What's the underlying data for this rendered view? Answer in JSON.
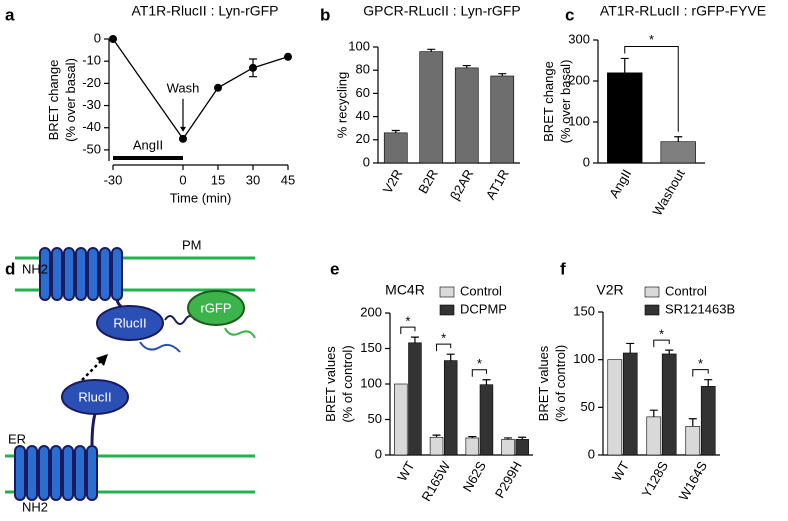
{
  "chart_data": [
    {
      "type": "line",
      "panel": "a",
      "title": "AT1R-RlucII : Lyn-rGFP",
      "xlabel": "Time (min)",
      "ylabel": [
        "BRET change",
        "(% over basal)"
      ],
      "x": [
        -30,
        0,
        15,
        30,
        45
      ],
      "values": [
        0,
        -45,
        -22,
        -13,
        -8
      ],
      "errors": [
        null,
        null,
        null,
        4,
        null
      ],
      "color": "#000000",
      "xlim": [
        -30,
        45
      ],
      "xticks": [
        -30,
        0,
        15,
        30,
        45
      ],
      "ylim": [
        -55,
        0
      ],
      "yticks": [
        0,
        -10,
        -20,
        -30,
        -40,
        -50
      ],
      "wash_label": "Wash",
      "treatment_label": "AngII",
      "treatment_x": [
        -30,
        0
      ]
    },
    {
      "type": "bar",
      "panel": "b",
      "title": "GPCR-RLucII : Lyn-rGFP",
      "ylabel": [
        "% recycling"
      ],
      "categories": [
        "V2R",
        "B2R",
        "β2AR",
        "AT1R"
      ],
      "values": [
        26,
        96,
        82,
        75
      ],
      "errors": [
        2,
        2,
        2,
        2
      ],
      "color": "#6e6e6e",
      "ylim": [
        0,
        100
      ],
      "yticks": [
        0,
        20,
        40,
        60,
        80,
        100
      ]
    },
    {
      "type": "bar",
      "panel": "c",
      "title": "AT1R-RLucII : rGFP-FYVE",
      "ylabel": [
        "BRET change",
        "(% over basal)"
      ],
      "categories": [
        "AngII",
        "Washout"
      ],
      "values": [
        220,
        52
      ],
      "errors": [
        35,
        12
      ],
      "colors": [
        "#000000",
        "#7f7f7f"
      ],
      "ylim": [
        0,
        300
      ],
      "yticks": [
        0,
        100,
        200,
        300
      ],
      "significance": "*"
    },
    {
      "type": "grouped_bar",
      "panel": "e",
      "title": "MC4R",
      "ylabel": [
        "BRET values",
        "(% of control)"
      ],
      "categories": [
        "WT",
        "R165W",
        "N62S",
        "P299H"
      ],
      "series": [
        {
          "name": "Control",
          "color": "#d9d9d9",
          "values": [
            100,
            25,
            24,
            22
          ],
          "errors": [
            null,
            3,
            2,
            2
          ]
        },
        {
          "name": "DCPMP",
          "color": "#333333",
          "values": [
            158,
            133,
            99,
            22
          ],
          "errors": [
            8,
            9,
            7,
            3
          ]
        }
      ],
      "ylim": [
        0,
        200
      ],
      "yticks": [
        0,
        50,
        100,
        150,
        200
      ],
      "significance": [
        "*",
        "*",
        "*",
        null
      ]
    },
    {
      "type": "grouped_bar",
      "panel": "f",
      "title": "V2R",
      "ylabel": [
        "BRET values",
        "(% of control)"
      ],
      "categories": [
        "WT",
        "Y128S",
        "W164S"
      ],
      "series": [
        {
          "name": "Control",
          "color": "#d9d9d9",
          "values": [
            100,
            40,
            30
          ],
          "errors": [
            null,
            7,
            8
          ]
        },
        {
          "name": "SR121463B",
          "color": "#333333",
          "values": [
            107,
            106,
            72
          ],
          "errors": [
            10,
            4,
            7
          ]
        }
      ],
      "ylim": [
        0,
        150
      ],
      "yticks": [
        0,
        50,
        100,
        150
      ],
      "significance": [
        null,
        "*",
        "*"
      ]
    }
  ],
  "diagram_d": {
    "panel": "d",
    "pm_nh2": "NH2",
    "pm": "PM",
    "pm_rluc": "RlucII",
    "rgfp": "rGFP",
    "er_rluc": "RlucII",
    "er": "ER",
    "er_nh2": "NH2"
  }
}
